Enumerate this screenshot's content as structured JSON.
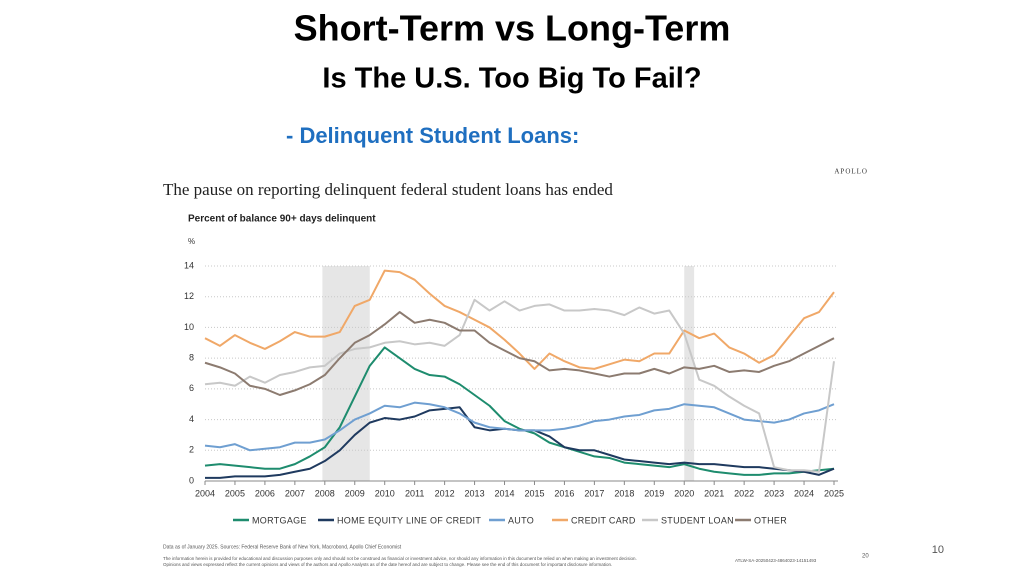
{
  "header": {
    "title": "Short-Term vs Long-Term",
    "subtitle": "Is The U.S. Too Big To Fail?",
    "section": "-  Delinquent Student Loans:",
    "brand": "APOLLO"
  },
  "chart_data": {
    "type": "line",
    "title": "The pause on reporting delinquent federal student loans has ended",
    "subtitle": "Percent of balance 90+ days delinquent",
    "y_unit": "%",
    "x": [
      2004,
      2004.5,
      2005,
      2005.5,
      2006,
      2006.5,
      2007,
      2007.5,
      2008,
      2008.5,
      2009,
      2009.5,
      2010,
      2010.5,
      2011,
      2011.5,
      2012,
      2012.5,
      2013,
      2013.5,
      2014,
      2014.5,
      2015,
      2015.5,
      2016,
      2016.5,
      2017,
      2017.5,
      2018,
      2018.5,
      2019,
      2019.5,
      2020,
      2020.5,
      2021,
      2021.5,
      2022,
      2022.5,
      2023,
      2023.5,
      2024,
      2024.5,
      2025
    ],
    "series": [
      {
        "name": "MORTGAGE",
        "color": "#1e8c6e",
        "values": [
          1.0,
          1.1,
          1.0,
          0.9,
          0.8,
          0.8,
          1.1,
          1.6,
          2.2,
          3.5,
          5.5,
          7.5,
          8.7,
          8.0,
          7.3,
          6.9,
          6.8,
          6.3,
          5.6,
          4.9,
          3.9,
          3.4,
          3.1,
          2.5,
          2.2,
          1.9,
          1.6,
          1.5,
          1.2,
          1.1,
          1.0,
          0.9,
          1.1,
          0.8,
          0.6,
          0.5,
          0.4,
          0.4,
          0.5,
          0.5,
          0.6,
          0.7,
          0.8
        ]
      },
      {
        "name": "HOME EQUITY LINE OF CREDIT",
        "color": "#1f3a5f",
        "values": [
          0.2,
          0.2,
          0.3,
          0.3,
          0.3,
          0.4,
          0.6,
          0.8,
          1.3,
          2.0,
          3.0,
          3.8,
          4.1,
          4.0,
          4.2,
          4.6,
          4.7,
          4.8,
          3.5,
          3.3,
          3.4,
          3.3,
          3.3,
          2.9,
          2.2,
          2.0,
          2.0,
          1.7,
          1.4,
          1.3,
          1.2,
          1.1,
          1.2,
          1.1,
          1.1,
          1.0,
          0.9,
          0.9,
          0.8,
          0.7,
          0.6,
          0.4,
          0.8
        ]
      },
      {
        "name": "AUTO",
        "color": "#6f9fd1",
        "values": [
          2.3,
          2.2,
          2.4,
          2.0,
          2.1,
          2.2,
          2.5,
          2.5,
          2.7,
          3.3,
          4.0,
          4.4,
          4.9,
          4.8,
          5.1,
          5.0,
          4.8,
          4.4,
          3.8,
          3.5,
          3.4,
          3.3,
          3.3,
          3.3,
          3.4,
          3.6,
          3.9,
          4.0,
          4.2,
          4.3,
          4.6,
          4.7,
          5.0,
          4.9,
          4.8,
          4.4,
          4.0,
          3.9,
          3.8,
          4.0,
          4.4,
          4.6,
          5.0
        ]
      },
      {
        "name": "CREDIT CARD",
        "color": "#f0a868",
        "values": [
          9.3,
          8.8,
          9.5,
          9.0,
          8.6,
          9.1,
          9.7,
          9.4,
          9.4,
          9.7,
          11.4,
          11.8,
          13.7,
          13.6,
          13.1,
          12.2,
          11.4,
          11.0,
          10.5,
          10.0,
          9.2,
          8.3,
          7.3,
          8.3,
          7.8,
          7.4,
          7.3,
          7.6,
          7.9,
          7.8,
          8.3,
          8.3,
          9.8,
          9.3,
          9.6,
          8.7,
          8.3,
          7.7,
          8.2,
          9.4,
          10.6,
          11.0,
          12.3
        ]
      },
      {
        "name": "STUDENT LOAN",
        "color": "#c8c8c8",
        "values": [
          6.3,
          6.4,
          6.2,
          6.8,
          6.4,
          6.9,
          7.1,
          7.4,
          7.5,
          8.3,
          8.6,
          8.7,
          9.0,
          9.1,
          8.9,
          9.0,
          8.8,
          9.5,
          11.8,
          11.1,
          11.7,
          11.1,
          11.4,
          11.5,
          11.1,
          11.1,
          11.2,
          11.1,
          10.8,
          11.3,
          10.9,
          11.1,
          9.6,
          6.6,
          6.2,
          5.5,
          4.9,
          4.4,
          0.9,
          0.7,
          0.7,
          0.6,
          7.8
        ]
      },
      {
        "name": "OTHER",
        "color": "#8c7b70",
        "values": [
          7.7,
          7.4,
          7.0,
          6.2,
          6.0,
          5.6,
          5.9,
          6.3,
          6.9,
          8.0,
          9.0,
          9.5,
          10.2,
          11.0,
          10.3,
          10.5,
          10.3,
          9.8,
          9.8,
          9.0,
          8.5,
          8.0,
          7.8,
          7.2,
          7.3,
          7.2,
          7.0,
          6.8,
          7.0,
          7.0,
          7.3,
          7.0,
          7.4,
          7.3,
          7.5,
          7.1,
          7.2,
          7.1,
          7.5,
          7.8,
          8.3,
          8.8,
          9.3
        ]
      }
    ],
    "shaded_periods": [
      [
        2007.92,
        2009.5
      ],
      [
        2020.0,
        2020.33
      ]
    ],
    "xlim": [
      2004,
      2025
    ],
    "xticks": [
      2004,
      2005,
      2006,
      2007,
      2008,
      2009,
      2010,
      2011,
      2012,
      2013,
      2014,
      2015,
      2016,
      2017,
      2018,
      2019,
      2020,
      2021,
      2022,
      2023,
      2024,
      2025
    ],
    "ylim": [
      0,
      14
    ],
    "yticks": [
      0,
      2,
      4,
      6,
      8,
      10,
      12,
      14
    ],
    "grid": true
  },
  "footer": {
    "source": "Data as of January 2025. Sources: Federal Reserve Bank of New York, Macrobond, Apollo Chief Economist",
    "disclaimer_1": "The information herein is provided for educational and discussion purposes only and should not be construed as financial or investment advice, nor should any information in this document be relied on when making an investment decision.",
    "disclaimer_2": "Opinions and views expressed reflect the current opinions and views of the authors and Apollo Analysts as of the date hereof and are subject to change. Please see the end of this document for important disclosure information.",
    "code": "ATLW-SA-20250423-4864023-14151493",
    "source_page": "20",
    "slide_number": "10"
  }
}
